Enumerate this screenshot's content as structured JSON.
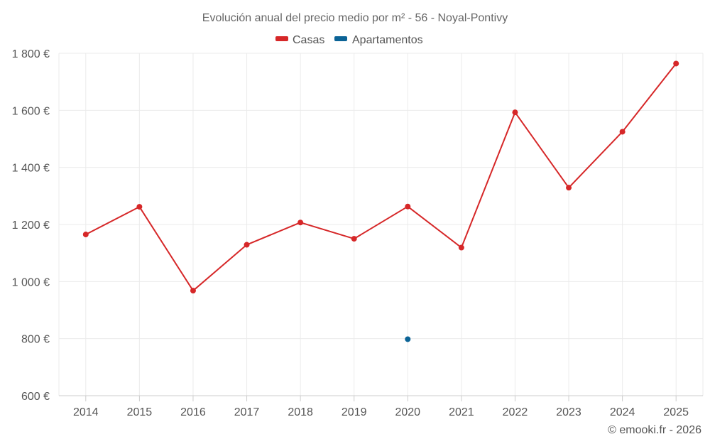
{
  "chart_data": {
    "type": "line",
    "title": "Evolución anual del precio medio por m² - 56 - Noyal-Pontivy",
    "categories": [
      "2014",
      "2015",
      "2016",
      "2017",
      "2018",
      "2019",
      "2020",
      "2021",
      "2022",
      "2023",
      "2024",
      "2025"
    ],
    "series": [
      {
        "name": "Casas",
        "color": "#d62728",
        "values": [
          1165,
          1262,
          968,
          1129,
          1207,
          1150,
          1263,
          1119,
          1593,
          1329,
          1525,
          1764
        ]
      },
      {
        "name": "Apartamentos",
        "color": "#0b6396",
        "values": [
          null,
          null,
          null,
          null,
          null,
          null,
          798,
          null,
          null,
          null,
          null,
          null
        ]
      }
    ],
    "ylim": [
      600,
      1800
    ],
    "yticks": [
      600,
      800,
      1000,
      1200,
      1400,
      1600,
      1800
    ],
    "ytick_labels": [
      "600 €",
      "800 €",
      "1 000 €",
      "1 200 €",
      "1 400 €",
      "1 600 €",
      "1 800 €"
    ],
    "xlabel": "",
    "ylabel": "",
    "grid": true,
    "legend_position": "top-center"
  },
  "credit": "© emooki.fr - 2026"
}
